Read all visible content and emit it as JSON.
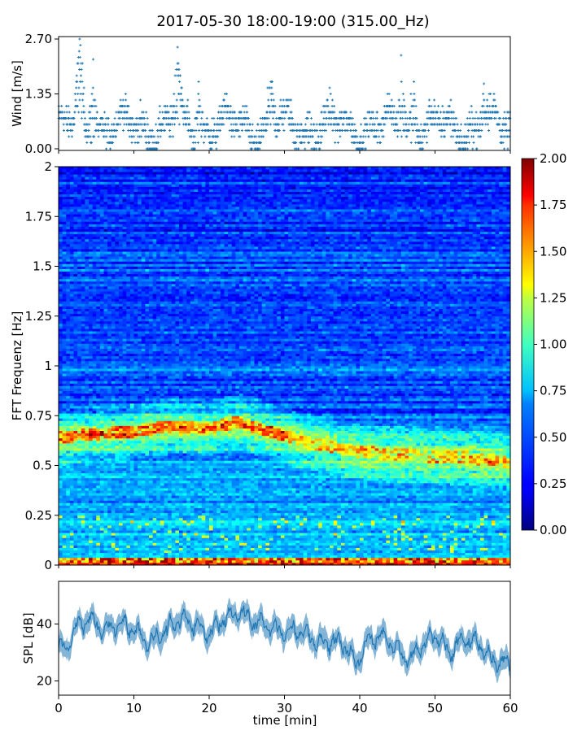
{
  "title": "2017-05-30 18:00-19:00 (315.00_Hz)",
  "chart_data": [
    {
      "type": "scatter",
      "ylabel": "Wind [m/s]",
      "xlim": [
        0,
        60
      ],
      "ylim": [
        0,
        2.7
      ],
      "yticks": [
        "0.00",
        "1.35",
        "2.70"
      ],
      "marker_color": "#1f77b4",
      "point_count": 1800,
      "value_step": 0.15,
      "peaks": [
        {
          "x": 2.8,
          "y": 2.7
        },
        {
          "x": 4.6,
          "y": 2.2
        },
        {
          "x": 15.8,
          "y": 2.5
        },
        {
          "x": 18.6,
          "y": 1.65
        },
        {
          "x": 28.3,
          "y": 1.65
        },
        {
          "x": 45.5,
          "y": 2.3
        },
        {
          "x": 47.2,
          "y": 1.65
        },
        {
          "x": 56.5,
          "y": 1.6
        }
      ],
      "typical_range": [
        0.15,
        1.2
      ]
    },
    {
      "type": "heatmap",
      "ylabel": "FFT Frequenz [Hz]",
      "xlim": [
        0,
        60
      ],
      "ylim": [
        0,
        2
      ],
      "yticks": [
        "0",
        "0.25",
        "0.5",
        "0.75",
        "1",
        "1.25",
        "1.5",
        "1.75",
        "2"
      ],
      "colormap": "jet",
      "colorbar": {
        "min": 0,
        "max": 2,
        "ticks": [
          "0.00",
          "0.25",
          "0.50",
          "0.75",
          "1.00",
          "1.25",
          "1.50",
          "1.75",
          "2.00"
        ]
      },
      "ridge": [
        {
          "x": 0,
          "freq": 0.64
        },
        {
          "x": 5,
          "freq": 0.66
        },
        {
          "x": 10,
          "freq": 0.67
        },
        {
          "x": 15,
          "freq": 0.7
        },
        {
          "x": 20,
          "freq": 0.69
        },
        {
          "x": 24,
          "freq": 0.72
        },
        {
          "x": 28,
          "freq": 0.67
        },
        {
          "x": 33,
          "freq": 0.62
        },
        {
          "x": 38,
          "freq": 0.58
        },
        {
          "x": 43,
          "freq": 0.56
        },
        {
          "x": 48,
          "freq": 0.55
        },
        {
          "x": 54,
          "freq": 0.54
        },
        {
          "x": 60,
          "freq": 0.52
        }
      ],
      "background_level": 0.2,
      "baseline_band_hz": [
        0,
        0.02
      ]
    },
    {
      "type": "line",
      "ylabel": "SPL [dB]",
      "xlabel": "time [min]",
      "xlim": [
        0,
        60
      ],
      "ylim": [
        15,
        55
      ],
      "xticks": [
        "0",
        "10",
        "20",
        "30",
        "40",
        "50",
        "60"
      ],
      "yticks": [
        "20",
        "40"
      ],
      "line_color": "#1f77b4",
      "trend": [
        {
          "x": 0,
          "y": 32
        },
        {
          "x": 1,
          "y": 30
        },
        {
          "x": 2,
          "y": 38
        },
        {
          "x": 4,
          "y": 42
        },
        {
          "x": 6,
          "y": 38
        },
        {
          "x": 8,
          "y": 40
        },
        {
          "x": 10,
          "y": 38
        },
        {
          "x": 12,
          "y": 33
        },
        {
          "x": 14,
          "y": 37
        },
        {
          "x": 16,
          "y": 42
        },
        {
          "x": 18,
          "y": 40
        },
        {
          "x": 20,
          "y": 36
        },
        {
          "x": 22,
          "y": 42
        },
        {
          "x": 24,
          "y": 44
        },
        {
          "x": 26,
          "y": 41
        },
        {
          "x": 28,
          "y": 39
        },
        {
          "x": 30,
          "y": 37
        },
        {
          "x": 32,
          "y": 38
        },
        {
          "x": 34,
          "y": 34
        },
        {
          "x": 36,
          "y": 34
        },
        {
          "x": 38,
          "y": 33
        },
        {
          "x": 39.5,
          "y": 26
        },
        {
          "x": 41,
          "y": 34
        },
        {
          "x": 43,
          "y": 36
        },
        {
          "x": 45,
          "y": 31
        },
        {
          "x": 46.5,
          "y": 27
        },
        {
          "x": 48,
          "y": 32
        },
        {
          "x": 50,
          "y": 36
        },
        {
          "x": 52,
          "y": 30
        },
        {
          "x": 54,
          "y": 35
        },
        {
          "x": 56,
          "y": 33
        },
        {
          "x": 57.5,
          "y": 27
        },
        {
          "x": 60,
          "y": 26
        }
      ]
    }
  ]
}
